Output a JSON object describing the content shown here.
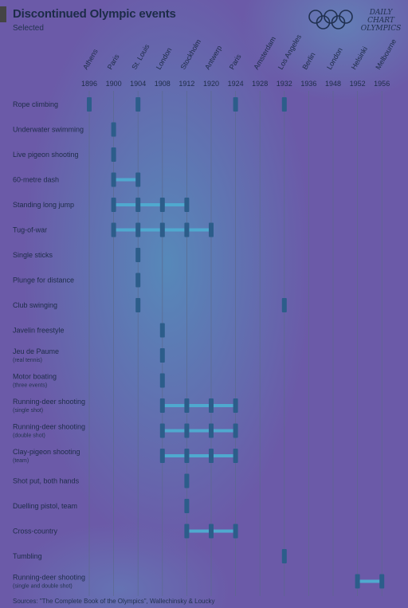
{
  "title": "Discontinued Olympic events",
  "subtitle": "Selected",
  "brand": {
    "line1": "DAILY",
    "line2": "CHART",
    "line3": "OLYMPICS",
    "icon": "olympic-rings-icon"
  },
  "source": "Sources: \"The Complete Book of the Olympics\", Wallechinsky & Loucky",
  "colors": {
    "marker": "#2c5d8a",
    "connector": "#4fa9cf",
    "gridline": "#5a6a8a"
  },
  "chart_data": {
    "type": "table",
    "x_ticks": [
      1896,
      1900,
      1904,
      1908,
      1912,
      1920,
      1924,
      1928,
      1932,
      1936,
      1948,
      1952,
      1956
    ],
    "cities": [
      "Athens",
      "Paris",
      "St. Louis",
      "London",
      "Stockholm",
      "Antwerp",
      "Paris",
      "Amsterdam",
      "Los Angeles",
      "Berlin",
      "London",
      "Helsinki",
      "Melbourne"
    ],
    "events": [
      {
        "name": "Rope climbing",
        "sub": "",
        "years": [
          1896,
          1904,
          1924,
          1932
        ],
        "spans": []
      },
      {
        "name": "Underwater swimming",
        "sub": "",
        "years": [
          1900
        ],
        "spans": []
      },
      {
        "name": "Live pigeon shooting",
        "sub": "",
        "years": [
          1900
        ],
        "spans": []
      },
      {
        "name": "60-metre dash",
        "sub": "",
        "years": [
          1900,
          1904
        ],
        "spans": [
          [
            1900,
            1904
          ]
        ]
      },
      {
        "name": "Standing long jump",
        "sub": "",
        "years": [
          1900,
          1904,
          1908,
          1912
        ],
        "spans": [
          [
            1900,
            1912
          ]
        ]
      },
      {
        "name": "Tug-of-war",
        "sub": "",
        "years": [
          1900,
          1904,
          1908,
          1912,
          1920
        ],
        "spans": [
          [
            1900,
            1920
          ]
        ]
      },
      {
        "name": "Single sticks",
        "sub": "",
        "years": [
          1904
        ],
        "spans": []
      },
      {
        "name": "Plunge for distance",
        "sub": "",
        "years": [
          1904
        ],
        "spans": []
      },
      {
        "name": "Club swinging",
        "sub": "",
        "years": [
          1904,
          1932
        ],
        "spans": []
      },
      {
        "name": "Javelin freestyle",
        "sub": "",
        "years": [
          1908
        ],
        "spans": []
      },
      {
        "name": "Jeu de Paume",
        "sub": "(real tennis)",
        "years": [
          1908
        ],
        "spans": []
      },
      {
        "name": "Motor boating",
        "sub": "(three events)",
        "years": [
          1908
        ],
        "spans": []
      },
      {
        "name": "Running-deer shooting",
        "sub": "(single shot)",
        "years": [
          1908,
          1912,
          1920,
          1924
        ],
        "spans": [
          [
            1908,
            1924
          ]
        ]
      },
      {
        "name": "Running-deer shooting",
        "sub": "(double shot)",
        "years": [
          1908,
          1912,
          1920,
          1924
        ],
        "spans": [
          [
            1908,
            1924
          ]
        ]
      },
      {
        "name": "Clay-pigeon shooting",
        "sub": "(team)",
        "years": [
          1908,
          1912,
          1920,
          1924
        ],
        "spans": [
          [
            1908,
            1924
          ]
        ]
      },
      {
        "name": "Shot put, both hands",
        "sub": "",
        "years": [
          1912
        ],
        "spans": []
      },
      {
        "name": "Duelling pistol, team",
        "sub": "",
        "years": [
          1912
        ],
        "spans": []
      },
      {
        "name": "Cross-country",
        "sub": "",
        "years": [
          1912,
          1920,
          1924
        ],
        "spans": [
          [
            1912,
            1924
          ]
        ]
      },
      {
        "name": "Tumbling",
        "sub": "",
        "years": [
          1932
        ],
        "spans": []
      },
      {
        "name": "Running-deer shooting",
        "sub": "(single and double shot)",
        "years": [
          1952,
          1956
        ],
        "spans": [
          [
            1952,
            1956
          ]
        ]
      }
    ]
  }
}
